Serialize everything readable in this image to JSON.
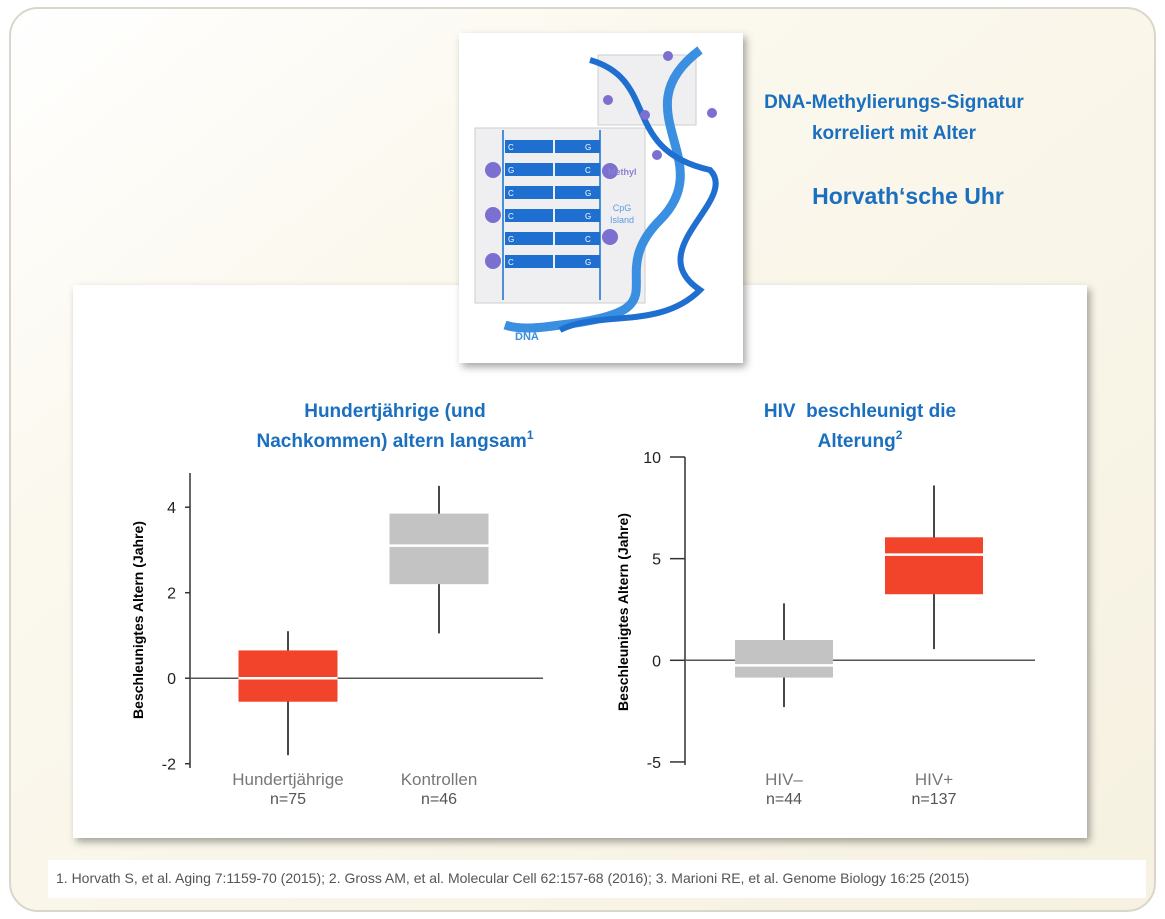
{
  "header": {
    "lines": [
      "DNA-Methylierungs-Signatur",
      "korreliert mit Alter"
    ],
    "subtitle": "Horvath‘sche Uhr"
  },
  "dna_figure": {
    "methyl_label": "Methyl",
    "island_label": [
      "CpG",
      "Island"
    ],
    "dna_label": "DNA",
    "base_pairs": [
      [
        "C",
        "G"
      ],
      [
        "G",
        "C"
      ],
      [
        "C",
        "G"
      ],
      [
        "C",
        "G"
      ],
      [
        "G",
        "C"
      ],
      [
        "C",
        "G"
      ]
    ]
  },
  "chart_data": [
    {
      "type": "box",
      "title": [
        "Hundertjährige (und",
        "Nachkommen) altern langsam"
      ],
      "title_sup": "1",
      "y_label": "Beschleunigtes Altern (Jahre)",
      "categories": [
        "Hundertjährige",
        "Kontrollen"
      ],
      "n_labels": [
        "n=75",
        "n=46"
      ],
      "boxes": [
        {
          "color": "#f2432b",
          "low": -1.8,
          "q1": -0.55,
          "median": 0,
          "q3": 0.65,
          "high": 1.1
        },
        {
          "color": "#c3c3c3",
          "low": 1.05,
          "q1": 2.2,
          "median": 3.1,
          "q3": 3.85,
          "high": 4.5
        }
      ],
      "reference_line": 0,
      "ylim": [
        -2.1,
        4.8
      ],
      "yticks": [
        -2,
        0,
        2,
        4
      ]
    },
    {
      "type": "box",
      "title": [
        "HIV  beschleunigt die",
        "Alterung"
      ],
      "title_sup": "2",
      "y_label": "Beschleunigtes Altern (Jahre)",
      "categories": [
        "HIV–",
        "HIV+"
      ],
      "n_labels": [
        "n=44",
        "n=137"
      ],
      "boxes": [
        {
          "color": "#c3c3c3",
          "low": -2.3,
          "q1": -0.85,
          "median": -0.25,
          "q3": 1.0,
          "high": 2.8
        },
        {
          "color": "#f2432b",
          "low": 0.55,
          "q1": 3.25,
          "median": 5.2,
          "q3": 6.05,
          "high": 8.6
        }
      ],
      "reference_line": 0,
      "ylim": [
        -5.15,
        10
      ],
      "yticks": [
        -5,
        0,
        5,
        10
      ]
    }
  ],
  "footnote": "1. Horvath S, et al. Aging 7:1159-70 (2015); 2. Gross AM, et al. Molecular Cell 62:157-68 (2016); 3. Marioni RE, et al. Genome Biology 16:25 (2015)"
}
